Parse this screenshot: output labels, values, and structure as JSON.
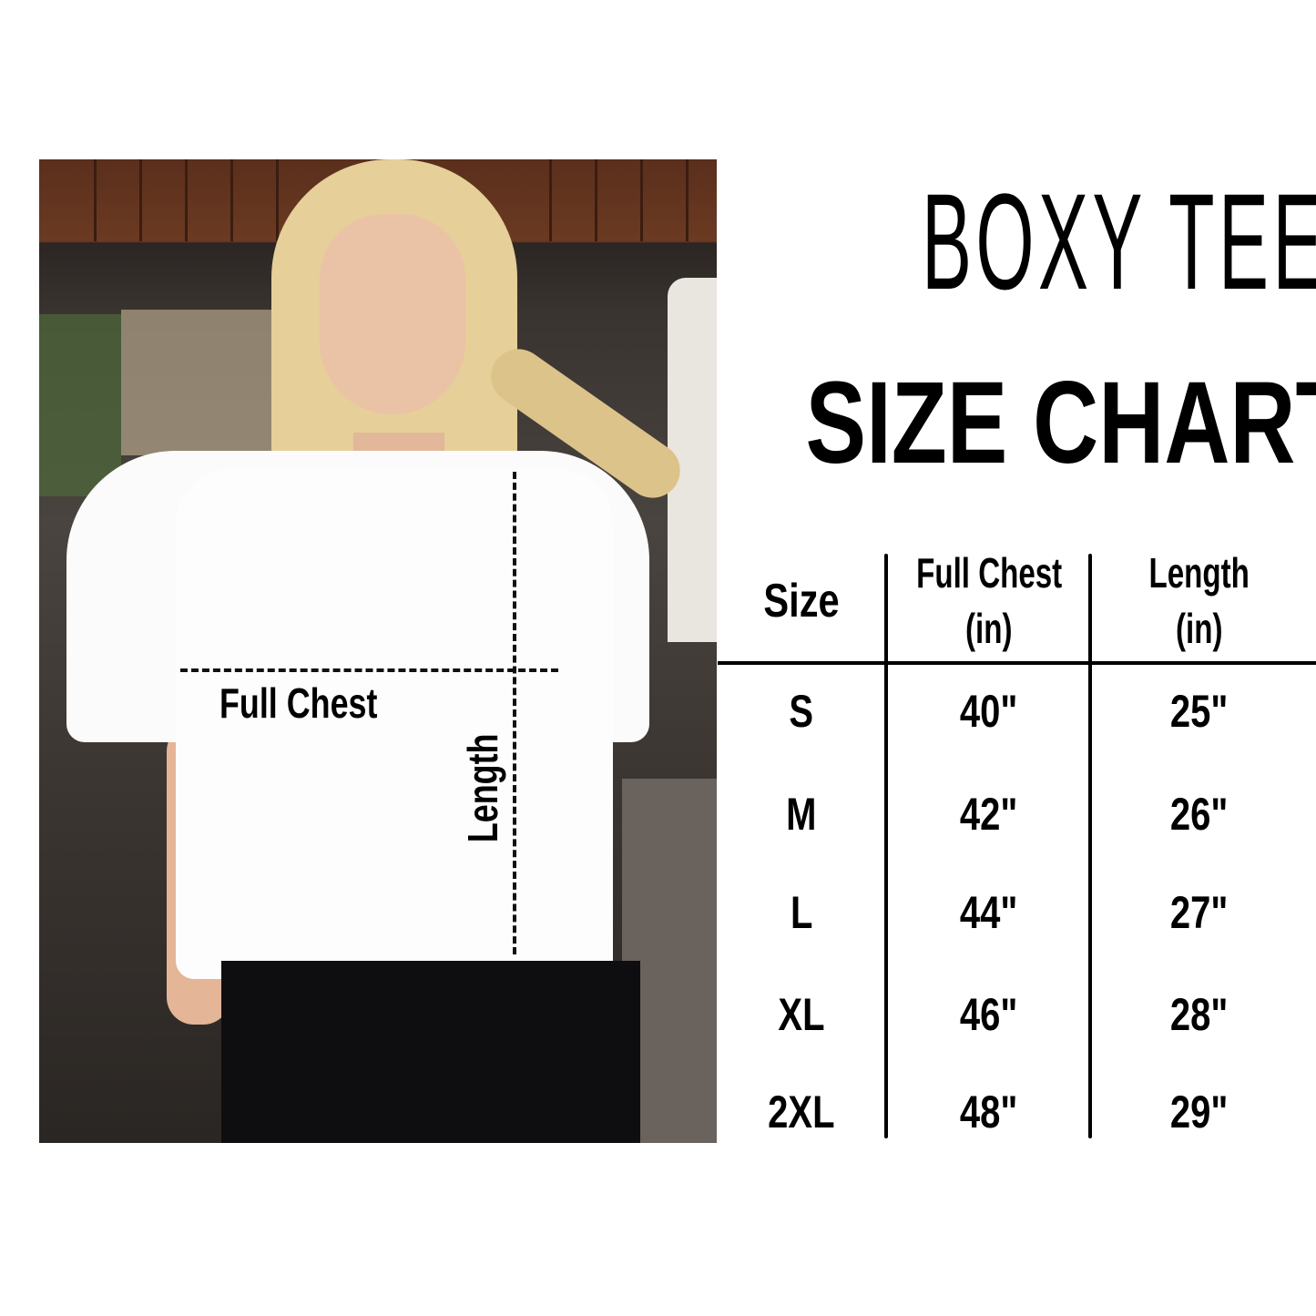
{
  "title": "BOXY TEE",
  "subtitle": "SIZE CHART",
  "photo": {
    "chest_label": "Full Chest",
    "length_label": "Length"
  },
  "table": {
    "headers": [
      {
        "line1": "Size",
        "line2": ""
      },
      {
        "line1": "Full Chest",
        "line2": "(in)"
      },
      {
        "line1": "Length",
        "line2": "(in)"
      }
    ],
    "rows": [
      {
        "size": "S",
        "chest": "40\"",
        "length": "25\""
      },
      {
        "size": "M",
        "chest": "42\"",
        "length": "26\""
      },
      {
        "size": "L",
        "chest": "44\"",
        "length": "27\""
      },
      {
        "size": "XL",
        "chest": "46\"",
        "length": "28\""
      },
      {
        "size": "2XL",
        "chest": "48\"",
        "length": "29\""
      }
    ]
  }
}
